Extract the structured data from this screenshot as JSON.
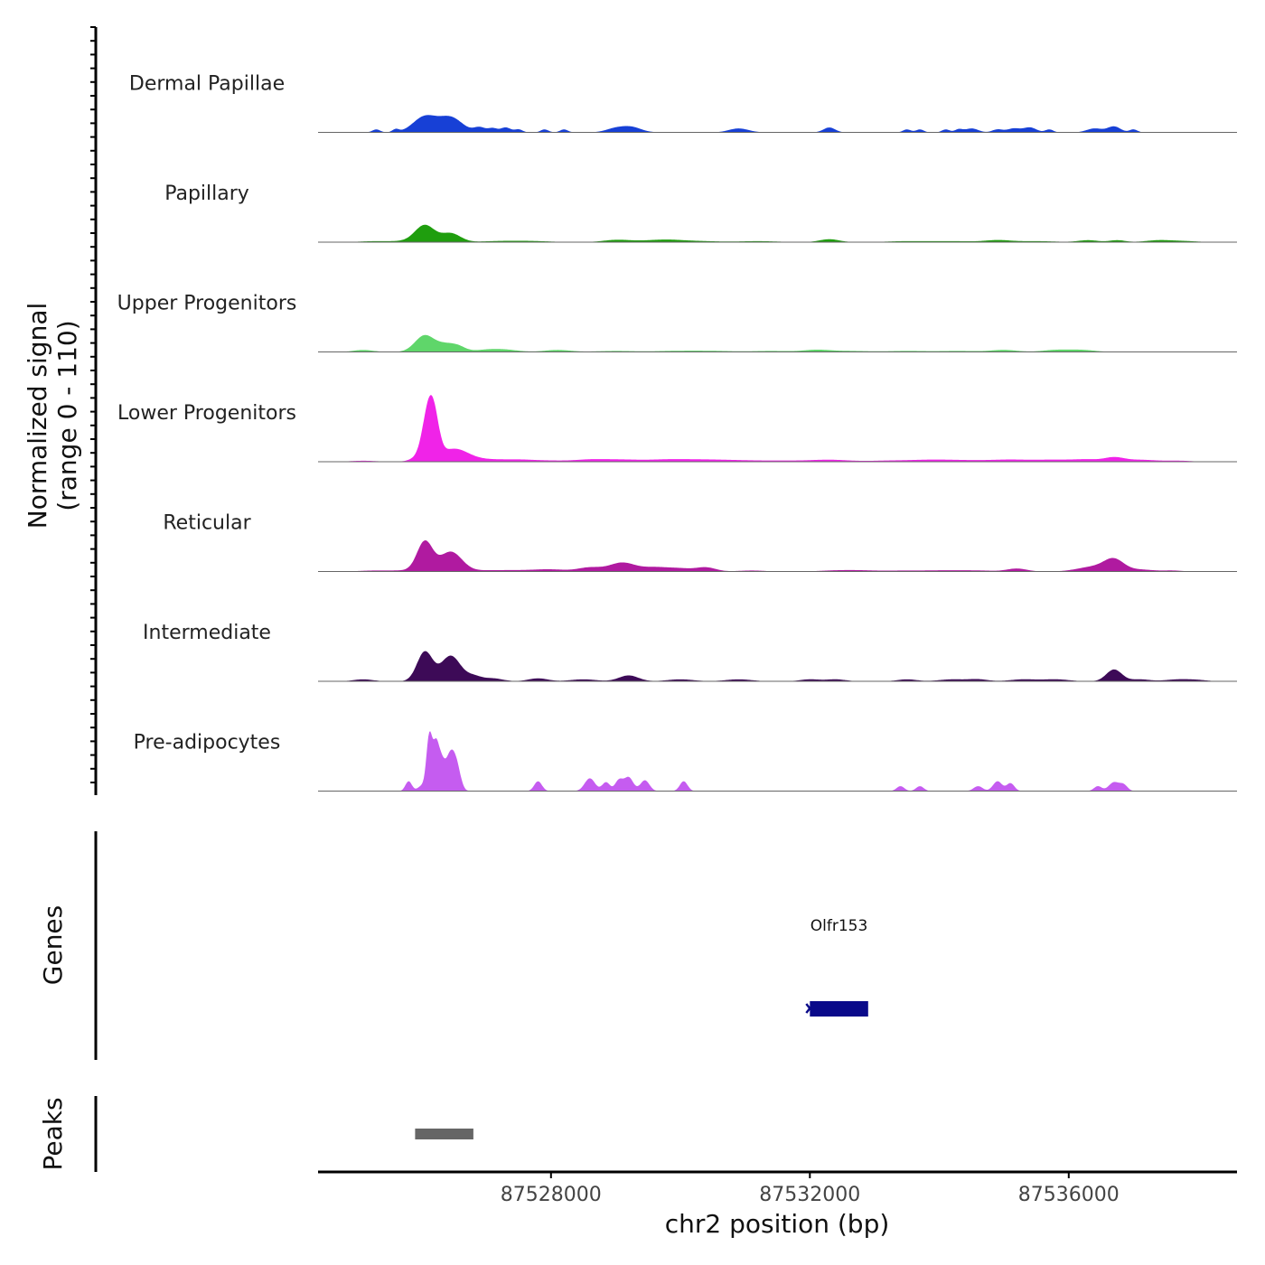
{
  "chart_data": {
    "type": "area",
    "title": "",
    "ylabel": "Normalized signal\n(range 0 - 110)",
    "y_axis_line1": "Normalized signal",
    "y_axis_line2": "(range 0 - 110)",
    "ylim": [
      0,
      110
    ],
    "xlabel": "chr2 position (bp)",
    "xlim": [
      87524400,
      87538600
    ],
    "xticks": [
      87528000,
      87532000,
      87536000
    ],
    "xtick_labels": [
      "87528000",
      "87532000",
      "87536000"
    ],
    "series": [
      {
        "name": "Dermal Papillae",
        "color": "#1740d6",
        "peaks": [
          [
            87525300,
            3,
            60
          ],
          [
            87525600,
            3,
            50
          ],
          [
            87526050,
            16,
            180
          ],
          [
            87526450,
            15,
            180
          ],
          [
            87526900,
            5,
            90
          ],
          [
            87527100,
            4,
            70
          ],
          [
            87527300,
            5,
            80
          ],
          [
            87527500,
            3,
            60
          ],
          [
            87527900,
            3,
            60
          ],
          [
            87528200,
            3,
            60
          ],
          [
            87529000,
            4,
            150
          ],
          [
            87529250,
            5,
            150
          ],
          [
            87530900,
            4,
            150
          ],
          [
            87532300,
            5,
            90
          ],
          [
            87533500,
            3,
            60
          ],
          [
            87533700,
            3,
            60
          ],
          [
            87534100,
            3,
            60
          ],
          [
            87534300,
            3,
            60
          ],
          [
            87534500,
            4,
            100
          ],
          [
            87534900,
            3,
            80
          ],
          [
            87535150,
            4,
            100
          ],
          [
            87535400,
            5,
            100
          ],
          [
            87535700,
            3,
            60
          ],
          [
            87536400,
            4,
            120
          ],
          [
            87536700,
            6,
            100
          ],
          [
            87537000,
            3,
            60
          ]
        ]
      },
      {
        "name": "Papillary",
        "color": "#1f9e0e",
        "peaks": [
          [
            87525300,
            1,
            250
          ],
          [
            87525800,
            1,
            200
          ],
          [
            87526050,
            17,
            150
          ],
          [
            87526450,
            9,
            150
          ],
          [
            87527200,
            1,
            300
          ],
          [
            87527700,
            1,
            300
          ],
          [
            87529000,
            2,
            200
          ],
          [
            87529400,
            1,
            300
          ],
          [
            87529800,
            2,
            250
          ],
          [
            87530300,
            1,
            300
          ],
          [
            87531200,
            1,
            300
          ],
          [
            87532300,
            3,
            150
          ],
          [
            87533500,
            1,
            300
          ],
          [
            87534200,
            1,
            300
          ],
          [
            87534900,
            2,
            200
          ],
          [
            87535500,
            1,
            300
          ],
          [
            87536300,
            2,
            150
          ],
          [
            87536750,
            2,
            120
          ],
          [
            87537400,
            2,
            200
          ],
          [
            87537800,
            1,
            200
          ]
        ]
      },
      {
        "name": "Upper Progenitors",
        "color": "#5fd66a",
        "peaks": [
          [
            87525100,
            2,
            150
          ],
          [
            87526050,
            17,
            150
          ],
          [
            87526350,
            6,
            120
          ],
          [
            87526550,
            6,
            120
          ],
          [
            87527000,
            2,
            200
          ],
          [
            87527300,
            2,
            200
          ],
          [
            87528100,
            2,
            200
          ],
          [
            87529000,
            1,
            300
          ],
          [
            87529900,
            1,
            300
          ],
          [
            87530500,
            1,
            300
          ],
          [
            87531400,
            1,
            300
          ],
          [
            87532100,
            2,
            200
          ],
          [
            87532600,
            1,
            300
          ],
          [
            87533500,
            1,
            300
          ],
          [
            87534300,
            1,
            300
          ],
          [
            87535000,
            2,
            200
          ],
          [
            87535800,
            2,
            200
          ],
          [
            87536200,
            2,
            200
          ]
        ]
      },
      {
        "name": "Lower Progenitors",
        "color": "#f023e8",
        "peaks": [
          [
            87525100,
            1,
            200
          ],
          [
            87525950,
            4,
            120
          ],
          [
            87526100,
            45,
            90
          ],
          [
            87526200,
            30,
            80
          ],
          [
            87526500,
            13,
            220
          ],
          [
            87527000,
            2,
            250
          ],
          [
            87527500,
            2,
            250
          ],
          [
            87528000,
            1,
            250
          ],
          [
            87528600,
            2,
            250
          ],
          [
            87529100,
            2,
            300
          ],
          [
            87529800,
            2,
            300
          ],
          [
            87530400,
            2,
            350
          ],
          [
            87531000,
            1,
            300
          ],
          [
            87531600,
            1,
            300
          ],
          [
            87532300,
            2,
            300
          ],
          [
            87533200,
            1,
            300
          ],
          [
            87533900,
            2,
            350
          ],
          [
            87534500,
            1,
            300
          ],
          [
            87535100,
            2,
            300
          ],
          [
            87535800,
            2,
            300
          ],
          [
            87536300,
            2,
            200
          ],
          [
            87536700,
            4,
            150
          ],
          [
            87537100,
            2,
            250
          ],
          [
            87537700,
            1,
            200
          ]
        ]
      },
      {
        "name": "Reticular",
        "color": "#b01aa0",
        "peaks": [
          [
            87525300,
            1,
            250
          ],
          [
            87525800,
            1,
            200
          ],
          [
            87526050,
            30,
            120
          ],
          [
            87526450,
            20,
            170
          ],
          [
            87527000,
            1,
            300
          ],
          [
            87527500,
            1,
            300
          ],
          [
            87528000,
            2,
            250
          ],
          [
            87528600,
            4,
            180
          ],
          [
            87529100,
            9,
            200
          ],
          [
            87529600,
            4,
            200
          ],
          [
            87530000,
            3,
            200
          ],
          [
            87530400,
            4,
            150
          ],
          [
            87531100,
            1,
            200
          ],
          [
            87532400,
            1,
            250
          ],
          [
            87532800,
            1,
            250
          ],
          [
            87533500,
            1,
            300
          ],
          [
            87534100,
            1,
            250
          ],
          [
            87534600,
            1,
            250
          ],
          [
            87535200,
            3,
            150
          ],
          [
            87536400,
            5,
            250
          ],
          [
            87536700,
            11,
            150
          ],
          [
            87537100,
            2,
            200
          ],
          [
            87537600,
            1,
            150
          ]
        ]
      },
      {
        "name": "Intermediate",
        "color": "#3d0a57",
        "peaks": [
          [
            87525100,
            2,
            150
          ],
          [
            87526050,
            30,
            120
          ],
          [
            87526450,
            26,
            150
          ],
          [
            87526800,
            5,
            120
          ],
          [
            87527100,
            3,
            150
          ],
          [
            87527800,
            3,
            150
          ],
          [
            87528500,
            2,
            200
          ],
          [
            87529200,
            6,
            150
          ],
          [
            87530000,
            2,
            200
          ],
          [
            87530900,
            2,
            200
          ],
          [
            87532000,
            2,
            150
          ],
          [
            87532400,
            2,
            150
          ],
          [
            87533500,
            2,
            150
          ],
          [
            87534200,
            2,
            200
          ],
          [
            87534600,
            2,
            150
          ],
          [
            87535300,
            2,
            200
          ],
          [
            87535800,
            2,
            200
          ],
          [
            87536700,
            12,
            120
          ],
          [
            87537100,
            2,
            150
          ],
          [
            87537700,
            2,
            200
          ],
          [
            87538000,
            1,
            150
          ]
        ]
      },
      {
        "name": "Pre-adipocytes",
        "color": "#c55cf0",
        "peaks": [
          [
            87525800,
            10,
            50
          ],
          [
            87526000,
            5,
            60
          ],
          [
            87526120,
            55,
            45
          ],
          [
            87526220,
            38,
            45
          ],
          [
            87526300,
            20,
            50
          ],
          [
            87526450,
            30,
            70
          ],
          [
            87526550,
            18,
            60
          ],
          [
            87526350,
            10,
            120
          ],
          [
            87527800,
            10,
            60
          ],
          [
            87528600,
            13,
            80
          ],
          [
            87528850,
            9,
            60
          ],
          [
            87529050,
            11,
            60
          ],
          [
            87529200,
            14,
            70
          ],
          [
            87529450,
            11,
            70
          ],
          [
            87530050,
            10,
            60
          ],
          [
            87533400,
            5,
            60
          ],
          [
            87533700,
            5,
            60
          ],
          [
            87534600,
            5,
            70
          ],
          [
            87534900,
            10,
            70
          ],
          [
            87535100,
            8,
            60
          ],
          [
            87536450,
            5,
            60
          ],
          [
            87536700,
            9,
            80
          ],
          [
            87536850,
            6,
            60
          ]
        ]
      }
    ],
    "genes_track": {
      "label": "Genes",
      "genes": [
        {
          "name": "Olfr153",
          "start": 87532000,
          "end": 87532900,
          "strand": "-",
          "color": "#0a0a8a"
        }
      ]
    },
    "peaks_track": {
      "label": "Peaks",
      "peaks": [
        {
          "start": 87525900,
          "end": 87526800,
          "color": "#666666"
        }
      ]
    }
  }
}
